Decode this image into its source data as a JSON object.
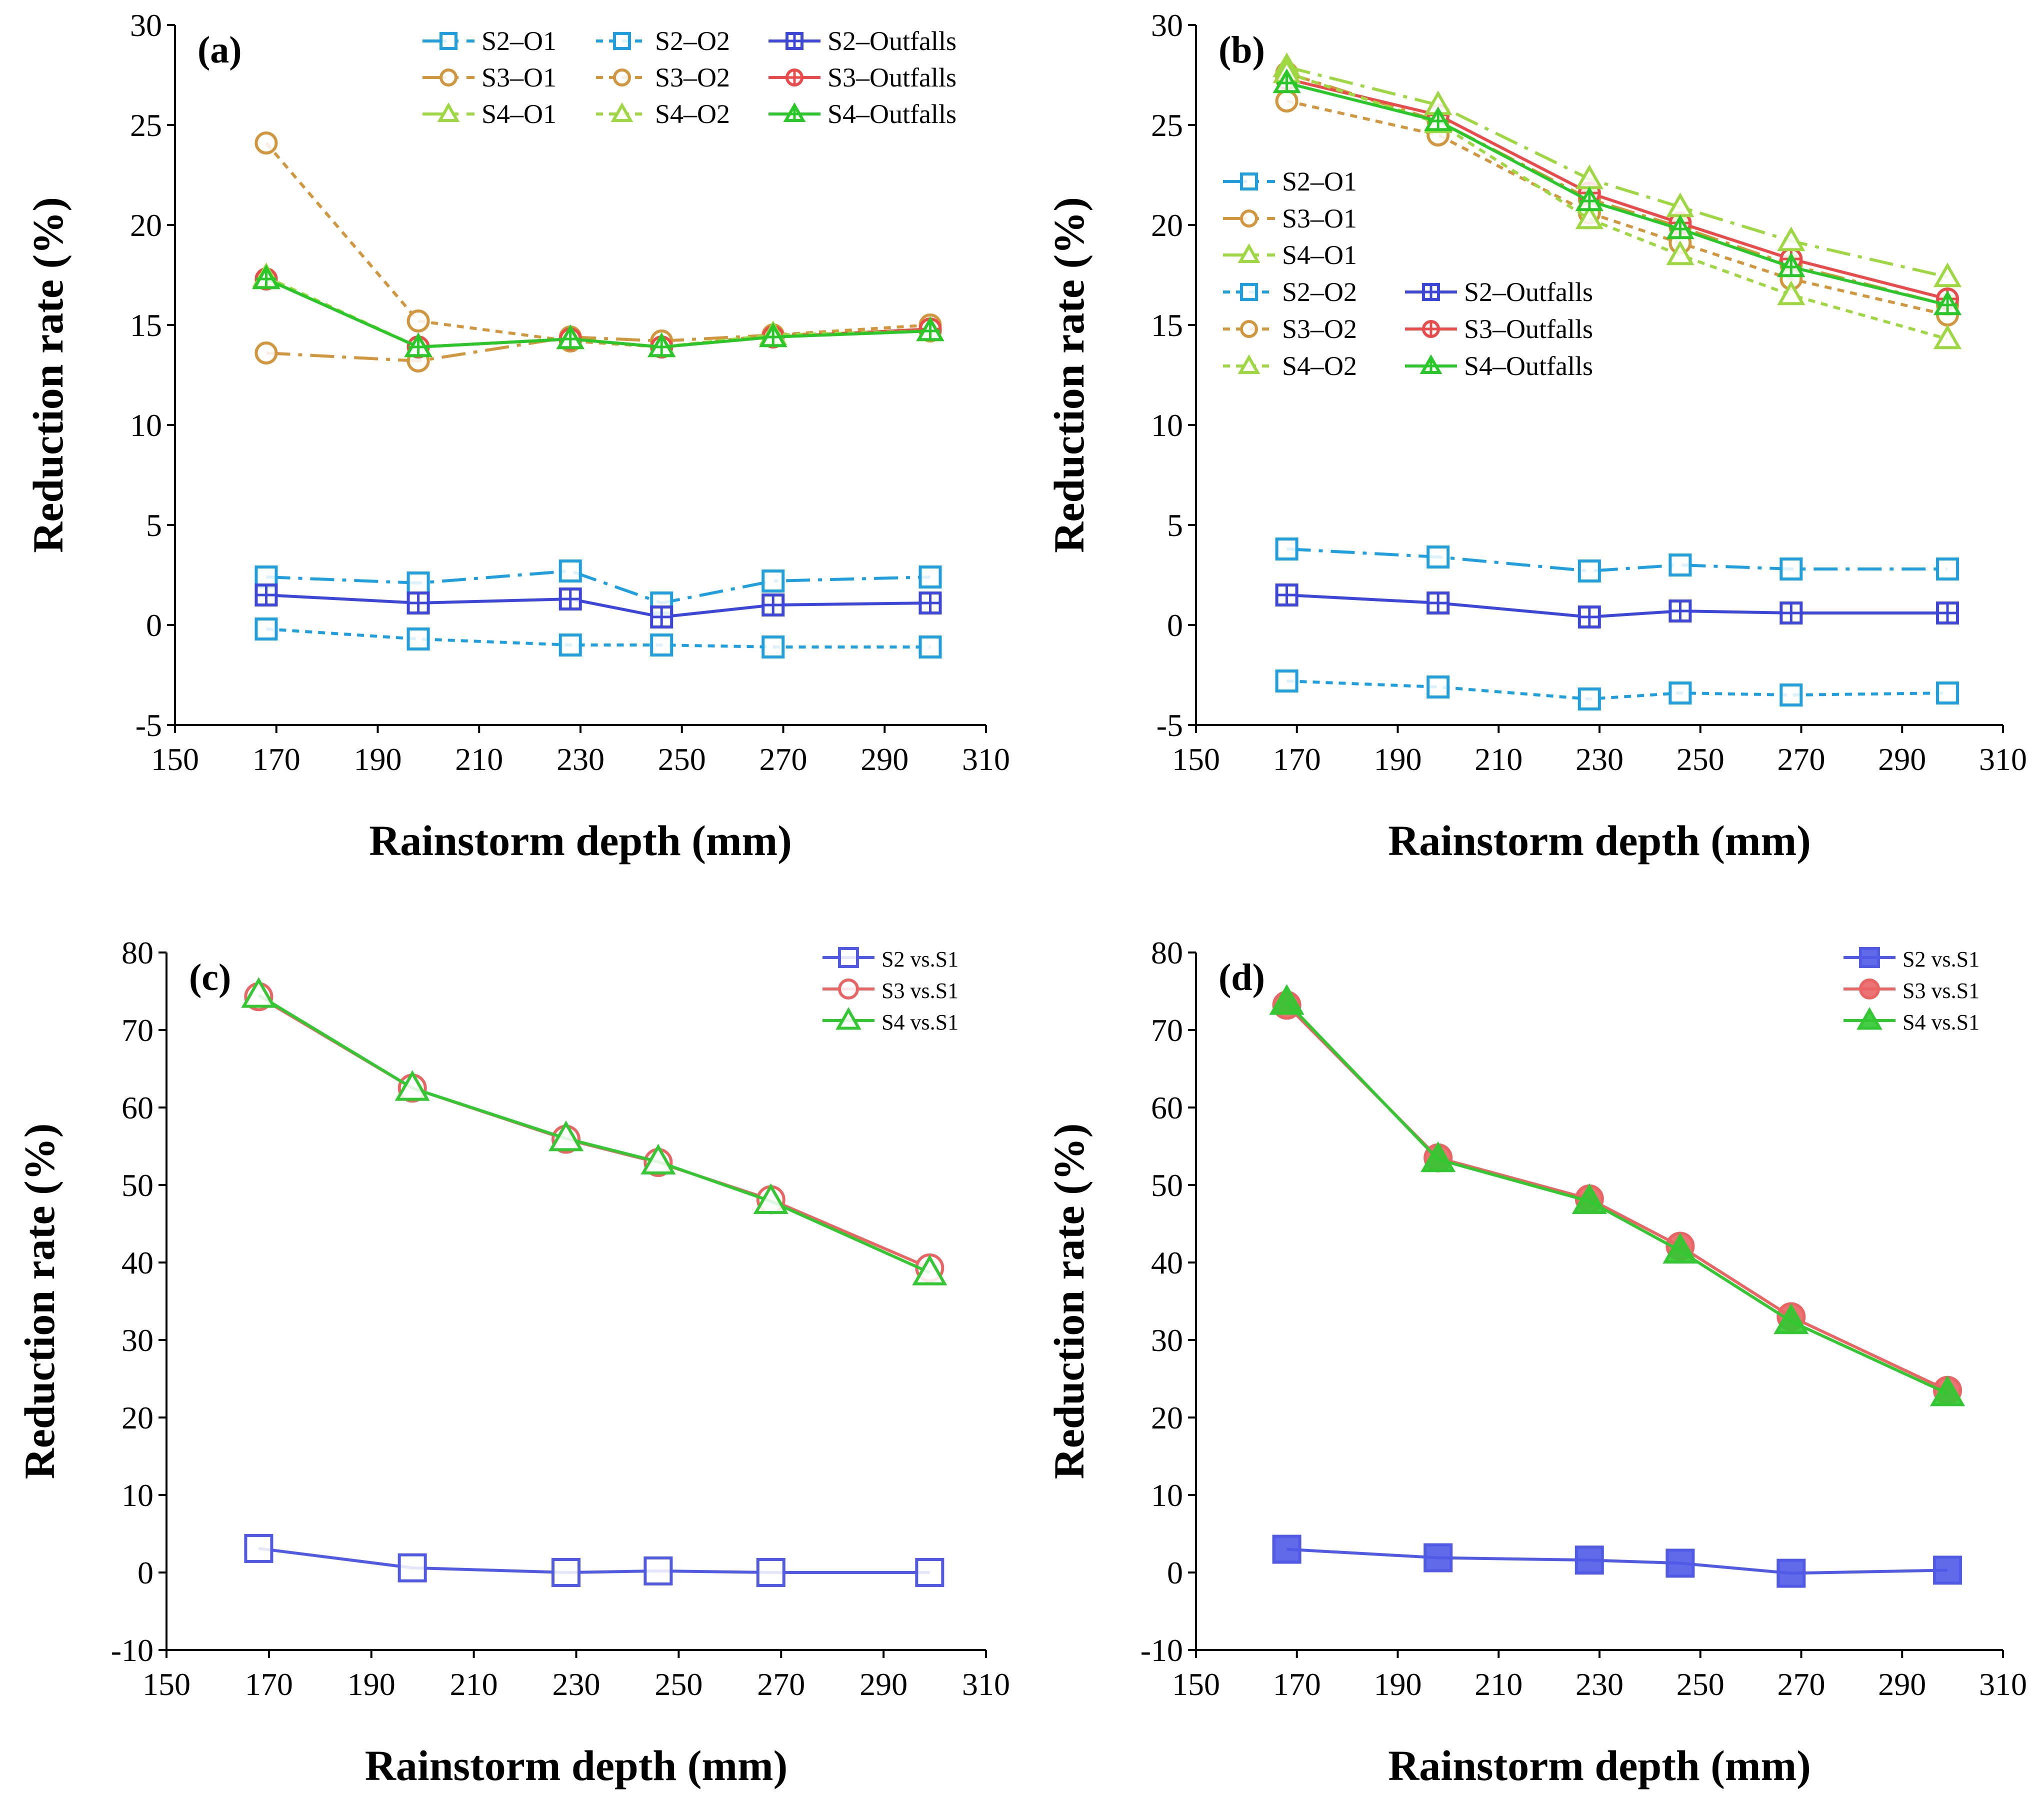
{
  "chart_data": [
    {
      "panel": "(a)",
      "type": "line",
      "xlabel": "Rainstorm depth (mm)",
      "ylabel": "Reduction rate (%)",
      "xlim": [
        150,
        310
      ],
      "xticks": [
        150,
        170,
        190,
        210,
        230,
        250,
        270,
        290,
        310
      ],
      "ylim": [
        -5,
        30
      ],
      "yticks": [
        -5,
        0,
        5,
        10,
        15,
        20,
        25,
        30
      ],
      "x": [
        168,
        198,
        228,
        246,
        268,
        299
      ],
      "legend_position": "top-center",
      "series": [
        {
          "name": "S2–O1",
          "values": [
            2.4,
            2.1,
            2.7,
            1.1,
            2.2,
            2.4
          ],
          "color": "#1ea0e0",
          "dash": "dashdot",
          "marker": "square",
          "fill": "none"
        },
        {
          "name": "S2–O2",
          "values": [
            -0.2,
            -0.7,
            -1.0,
            -1.0,
            -1.1,
            -1.1
          ],
          "color": "#1ea0e0",
          "dash": "dot",
          "marker": "square",
          "fill": "none"
        },
        {
          "name": "S2–Outfalls",
          "values": [
            1.5,
            1.1,
            1.3,
            0.4,
            1.0,
            1.1
          ],
          "color": "#3c46dc",
          "dash": "solid",
          "marker": "square-cross",
          "fill": "none"
        },
        {
          "name": "S3–O1",
          "values": [
            13.6,
            13.2,
            14.4,
            14.2,
            14.5,
            14.7
          ],
          "color": "#d2963c",
          "dash": "dashdot",
          "marker": "circle",
          "fill": "none"
        },
        {
          "name": "S3–O2",
          "values": [
            24.1,
            15.2,
            14.2,
            13.9,
            14.5,
            15.0
          ],
          "color": "#d2963c",
          "dash": "dot",
          "marker": "circle",
          "fill": "none"
        },
        {
          "name": "S3–Outfalls",
          "values": [
            17.3,
            13.9,
            14.3,
            13.9,
            14.4,
            14.8
          ],
          "color": "#ea4a4a",
          "dash": "solid",
          "marker": "circle-cross",
          "fill": "none"
        },
        {
          "name": "S4–O1",
          "values": [
            17.3,
            13.9,
            14.3,
            13.9,
            14.4,
            14.7
          ],
          "color": "#9ed840",
          "dash": "dashdot",
          "marker": "triangle",
          "fill": "none"
        },
        {
          "name": "S4–O2",
          "values": [
            17.4,
            13.9,
            14.3,
            13.9,
            14.5,
            14.7
          ],
          "color": "#9ed840",
          "dash": "dot",
          "marker": "triangle",
          "fill": "none"
        },
        {
          "name": "S4–Outfalls",
          "values": [
            17.3,
            13.9,
            14.3,
            13.9,
            14.4,
            14.7
          ],
          "color": "#28c828",
          "dash": "solid",
          "marker": "triangle-cross",
          "fill": "none"
        }
      ]
    },
    {
      "panel": "(b)",
      "type": "line",
      "xlabel": "Rainstorm depth (mm)",
      "ylabel": "Reduction rate (%)",
      "xlim": [
        150,
        310
      ],
      "xticks": [
        150,
        170,
        190,
        210,
        230,
        250,
        270,
        290,
        310
      ],
      "ylim": [
        -5,
        30
      ],
      "yticks": [
        -5,
        0,
        5,
        10,
        15,
        20,
        25,
        30
      ],
      "x": [
        168,
        198,
        228,
        246,
        268,
        299
      ],
      "legend_position": "center-left",
      "series": [
        {
          "name": "S2–O1",
          "values": [
            3.8,
            3.4,
            2.7,
            3.0,
            2.8,
            2.8
          ],
          "color": "#1ea0e0",
          "dash": "dashdot",
          "marker": "square",
          "fill": "none"
        },
        {
          "name": "S2–O2",
          "values": [
            -2.8,
            -3.1,
            -3.7,
            -3.4,
            -3.5,
            -3.4
          ],
          "color": "#1ea0e0",
          "dash": "dot",
          "marker": "square",
          "fill": "none"
        },
        {
          "name": "S2–Outfalls",
          "values": [
            1.5,
            1.1,
            0.4,
            0.7,
            0.6,
            0.6
          ],
          "color": "#3c46dc",
          "dash": "solid",
          "marker": "square-cross",
          "fill": "none"
        },
        {
          "name": "S3–O1",
          "values": [
            27.6,
            25.2,
            21.3,
            19.9,
            18.0,
            16.0
          ],
          "color": "#d2963c",
          "dash": "dashdot",
          "marker": "circle",
          "fill": "none"
        },
        {
          "name": "S3–O2",
          "values": [
            26.2,
            24.5,
            20.6,
            19.1,
            17.3,
            15.5
          ],
          "color": "#d2963c",
          "dash": "dot",
          "marker": "circle",
          "fill": "none"
        },
        {
          "name": "S3–Outfalls",
          "values": [
            27.3,
            25.5,
            21.6,
            20.1,
            18.3,
            16.3
          ],
          "color": "#ea4a4a",
          "dash": "solid",
          "marker": "circle-cross",
          "fill": "none"
        },
        {
          "name": "S4–O1",
          "values": [
            27.9,
            26.0,
            22.3,
            20.9,
            19.2,
            17.4
          ],
          "color": "#9ed840",
          "dash": "dashdot",
          "marker": "triangle",
          "fill": "none"
        },
        {
          "name": "S4–O2",
          "values": [
            27.6,
            25.1,
            20.3,
            18.5,
            16.5,
            14.3
          ],
          "color": "#9ed840",
          "dash": "dot",
          "marker": "triangle",
          "fill": "none"
        },
        {
          "name": "S4–Outfalls",
          "values": [
            27.1,
            25.2,
            21.2,
            19.8,
            17.9,
            16.0
          ],
          "color": "#28c828",
          "dash": "solid",
          "marker": "triangle-cross",
          "fill": "none"
        }
      ]
    },
    {
      "panel": "(c)",
      "type": "line",
      "xlabel": "Rainstorm depth (mm)",
      "ylabel": "Reduction rate (%)",
      "xlim": [
        150,
        310
      ],
      "xticks": [
        150,
        170,
        190,
        210,
        230,
        250,
        270,
        290,
        310
      ],
      "ylim": [
        -10,
        80
      ],
      "yticks": [
        -10,
        0,
        10,
        20,
        30,
        40,
        50,
        60,
        70,
        80
      ],
      "x": [
        168,
        198,
        228,
        246,
        268,
        299
      ],
      "legend_position": "top-right",
      "series": [
        {
          "name": "S2 vs.S1",
          "values": [
            3.1,
            0.6,
            0.0,
            0.2,
            0.0,
            0.0
          ],
          "color": "#505ae6",
          "dash": "solid",
          "marker": "square",
          "fill": "none"
        },
        {
          "name": "S3 vs.S1",
          "values": [
            74.3,
            62.5,
            55.9,
            52.9,
            48.1,
            39.3
          ],
          "color": "#ea6464",
          "dash": "solid",
          "marker": "circle",
          "fill": "none"
        },
        {
          "name": "S4 vs.S1",
          "values": [
            74.5,
            62.5,
            56.0,
            53.0,
            47.9,
            38.7
          ],
          "color": "#32c832",
          "dash": "solid",
          "marker": "triangle",
          "fill": "none"
        }
      ]
    },
    {
      "panel": "(d)",
      "type": "line",
      "xlabel": "Rainstorm depth (mm)",
      "ylabel": "Reduction rate (%)",
      "xlim": [
        150,
        310
      ],
      "xticks": [
        150,
        170,
        190,
        210,
        230,
        250,
        270,
        290,
        310
      ],
      "ylim": [
        -10,
        80
      ],
      "yticks": [
        -10,
        0,
        10,
        20,
        30,
        40,
        50,
        60,
        70,
        80
      ],
      "x": [
        168,
        198,
        228,
        246,
        268,
        299
      ],
      "legend_position": "top-right",
      "series": [
        {
          "name": "S2 vs.S1",
          "values": [
            3.0,
            1.9,
            1.6,
            1.2,
            -0.1,
            0.3
          ],
          "color": "#505ae6",
          "dash": "solid",
          "marker": "square",
          "fill": "solid"
        },
        {
          "name": "S3 vs.S1",
          "values": [
            73.2,
            53.5,
            48.2,
            42.1,
            33.0,
            23.5
          ],
          "color": "#ea6464",
          "dash": "solid",
          "marker": "circle",
          "fill": "solid"
        },
        {
          "name": "S4 vs.S1",
          "values": [
            73.6,
            53.3,
            47.9,
            41.5,
            32.4,
            23.1
          ],
          "color": "#32c832",
          "dash": "solid",
          "marker": "triangle",
          "fill": "solid"
        }
      ]
    }
  ]
}
